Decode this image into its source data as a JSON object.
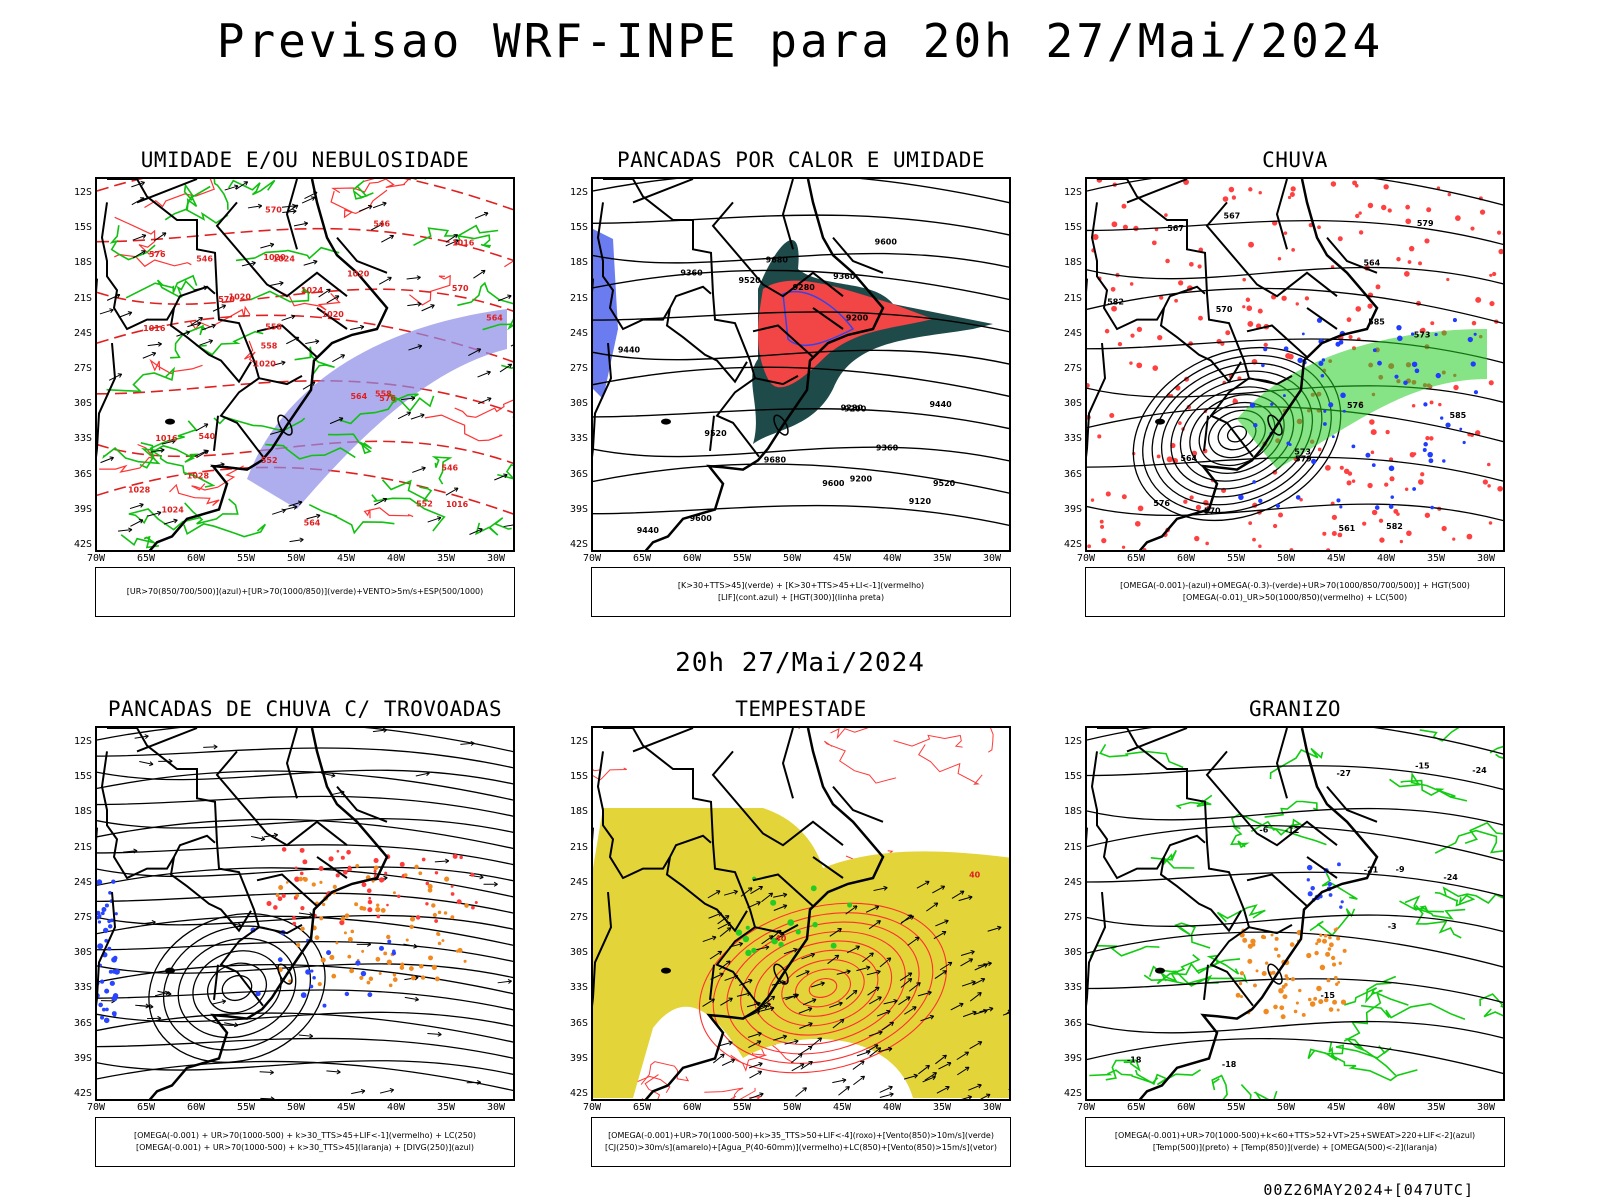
{
  "title": "Previsao WRF-INPE  para 20h 27/Mai/2024",
  "subtitle": "20h 27/Mai/2024",
  "footer": "00Z26MAY2024+[047UTC]",
  "lat_labels": [
    "12S",
    "15S",
    "18S",
    "21S",
    "24S",
    "27S",
    "30S",
    "33S",
    "36S",
    "39S",
    "42S"
  ],
  "lon_labels": [
    "70W",
    "65W",
    "60W",
    "55W",
    "50W",
    "45W",
    "40W",
    "35W",
    "30W"
  ],
  "panels": [
    {
      "title": "UMIDADE E/OU NEBULOSIDADE",
      "legend": [
        "[UR>70(850/700/500)](azul)+[UR>70(1000/850)](verde)+VENTO>5m/s+ESP(500/1000)"
      ],
      "labels": [
        "1016",
        "1016",
        "1016",
        "1020",
        "1020",
        "1024",
        "1020",
        "1024",
        "1016",
        "1020",
        "1028",
        "1028",
        "1024",
        "1020",
        "576",
        "576",
        "570",
        "564",
        "564",
        "570",
        "558",
        "552",
        "558",
        "546",
        "546",
        "540",
        "552",
        "546",
        "558",
        "564",
        "570"
      ]
    },
    {
      "title": "PANCADAS POR CALOR E UMIDADE",
      "legend": [
        "[K>30+TTS>45](verde) + [K>30+TTS>45+LI<-1](vermelho)",
        "[LIF](cont.azul) + [HGT(300)](linha preta)"
      ],
      "labels": [
        "9680",
        "9680",
        "9600",
        "9520",
        "9440",
        "9600",
        "9440",
        "9360",
        "9520",
        "9600",
        "9520",
        "9440",
        "9360",
        "9200",
        "9280",
        "9200",
        "9120",
        "9280",
        "9200",
        "9360"
      ]
    },
    {
      "title": "CHUVA",
      "legend": [
        "[OMEGA(-0.001)-(azul)+OMEGA(-0.3)-(verde)+UR>70(1000/850/700/500)] + HGT(500)",
        "[OMEGA(-0.01)_UR>50(1000/850)(vermelho) + LC(500)"
      ],
      "labels": [
        "585",
        "582",
        "579",
        "576",
        "573",
        "570",
        "567",
        "564",
        "561",
        "573",
        "576",
        "579",
        "582",
        "585",
        "570",
        "567",
        "564"
      ]
    },
    {
      "title": "PANCADAS DE CHUVA C/ TROVOADAS",
      "legend": [
        "[OMEGA(-0.001) + UR>70(1000-500) + k>30_TTS>45+LIF<-1](vermelho) + LC(250)",
        "[OMEGA(-0.001) + UR>70(1000-500) + k>30_TTS>45](laranja) + [DIVG(250)](azul)"
      ],
      "labels": []
    },
    {
      "title": "TEMPESTADE",
      "legend": [
        "[OMEGA(-0.001)+UR>70(1000-500)+k>35_TTS>50+LIF<-4](roxo)+[Vento(850)>10m/s](verde)",
        "[CJ(250)>30m/s](amarelo)+[Agua_P(40-60mm)](vermelho)+LC(850)+[Vento(850)>15m/s](vetor)"
      ],
      "labels": [
        "40",
        "40"
      ]
    },
    {
      "title": "GRANIZO",
      "legend": [
        "[OMEGA(-0.001)+UR>70(1000-500)+k<60+TTS>52+VT>25+SWEAT>220+LIF<-2](azul)",
        "[Temp(500)](preto) + [Temp(850)](verde) + [OMEGA(500)<-2](laranja)"
      ],
      "labels": [
        "-12",
        "-9",
        "-6",
        "-3",
        "-15",
        "-18",
        "-21",
        "-24",
        "-24",
        "-27",
        "-15",
        "-18"
      ]
    }
  ]
}
